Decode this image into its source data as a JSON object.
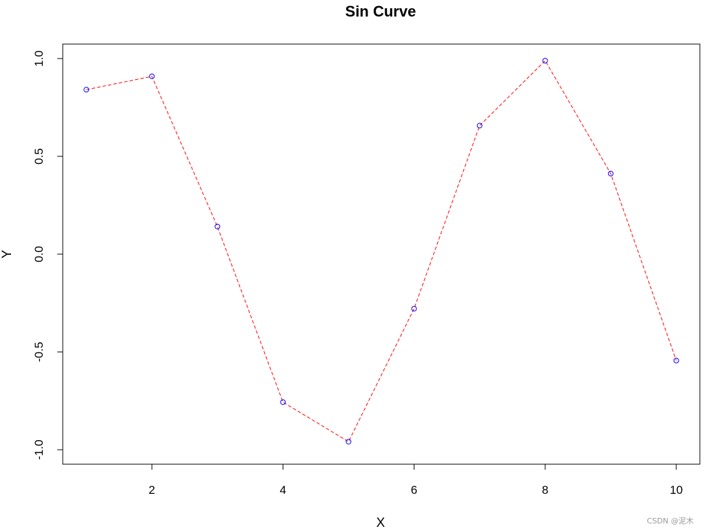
{
  "chart_data": {
    "type": "line",
    "title": "Sin Curve",
    "xlabel": "X",
    "ylabel": "Y",
    "x": [
      1,
      2,
      3,
      4,
      5,
      6,
      7,
      8,
      9,
      10
    ],
    "series": [
      {
        "values": [
          0.841,
          0.909,
          0.141,
          -0.757,
          -0.959,
          -0.279,
          0.657,
          0.989,
          0.412,
          -0.544
        ],
        "line_color": "#ff0000",
        "line_style": "dashed",
        "marker": "open-circle",
        "marker_color": "#0000ff"
      }
    ],
    "xlim": [
      0.64,
      10.36
    ],
    "ylim": [
      -1.074,
      1.074
    ],
    "x_ticks": [
      2,
      4,
      6,
      8,
      10
    ],
    "x_tick_labels": [
      "2",
      "4",
      "6",
      "8",
      "10"
    ],
    "y_ticks": [
      -1.0,
      -0.5,
      0.0,
      0.5,
      1.0
    ],
    "y_tick_labels": [
      "-1.0",
      "-0.5",
      "0.0",
      "0.5",
      "1.0"
    ],
    "grid": false,
    "legend": "none"
  },
  "watermark": "CSDN @泥木"
}
